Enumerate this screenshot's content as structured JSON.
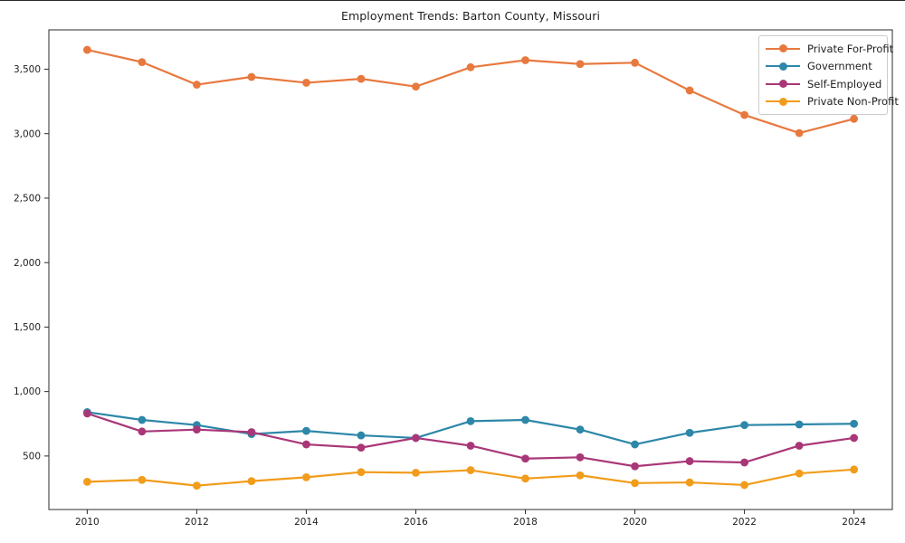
{
  "page": {
    "background_color": "#ffffff",
    "text_color": "#1f1f1f",
    "spine_color": "#2b2b2b"
  },
  "chart_data": {
    "type": "line",
    "title": "Employment Trends: Barton County, Missouri",
    "xlabel": "",
    "ylabel": "",
    "grid": false,
    "legend_position": "upper right",
    "marker": "circle",
    "x": [
      2010,
      2011,
      2012,
      2013,
      2014,
      2015,
      2016,
      2017,
      2018,
      2019,
      2020,
      2021,
      2022,
      2023,
      2024
    ],
    "series": [
      {
        "name": "Private For-Profit",
        "color": "#e8793e",
        "values": [
          3650,
          3555,
          3380,
          3440,
          3395,
          3425,
          3365,
          3515,
          3570,
          3540,
          3550,
          3335,
          3145,
          3005,
          3115
        ]
      },
      {
        "name": "Government",
        "color": "#2d87a8",
        "values": [
          840,
          780,
          740,
          670,
          695,
          660,
          640,
          770,
          780,
          705,
          590,
          680,
          740,
          745,
          750
        ]
      },
      {
        "name": "Self-Employed",
        "color": "#a93778",
        "values": [
          830,
          690,
          705,
          685,
          590,
          565,
          640,
          580,
          480,
          490,
          420,
          460,
          450,
          580,
          640
        ]
      },
      {
        "name": "Private Non-Profit",
        "color": "#f19c1b",
        "values": [
          300,
          315,
          270,
          305,
          335,
          375,
          370,
          390,
          325,
          350,
          290,
          295,
          275,
          365,
          395
        ]
      }
    ],
    "xlim": [
      2009.3,
      2024.7
    ],
    "ylim": [
      85,
      3805
    ],
    "x_tick_values": [
      2010,
      2012,
      2014,
      2016,
      2018,
      2020,
      2022,
      2024
    ],
    "x_tick_labels": [
      "2010",
      "2012",
      "2014",
      "2016",
      "2018",
      "2020",
      "2022",
      "2024"
    ],
    "y_tick_values": [
      500,
      1000,
      1500,
      2000,
      2500,
      3000,
      3500
    ],
    "y_tick_labels": [
      "500",
      "1,000",
      "1,500",
      "2,000",
      "2,500",
      "3,000",
      "3,500"
    ]
  }
}
